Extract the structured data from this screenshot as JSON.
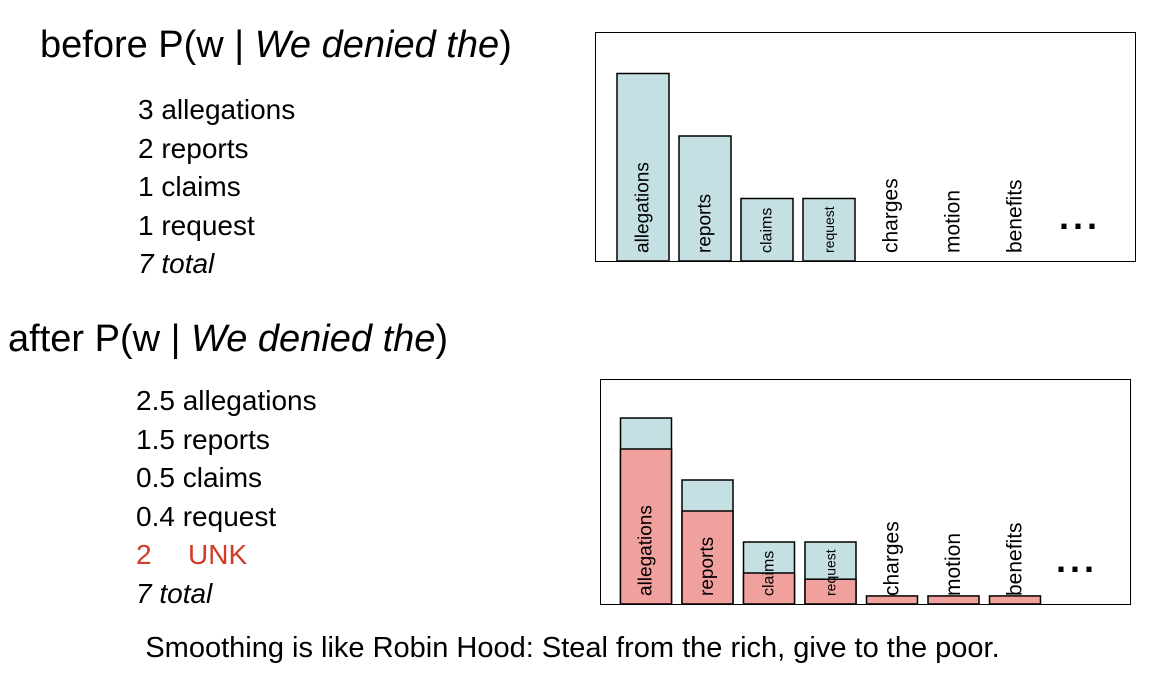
{
  "before": {
    "heading_prefix": "before P(w | ",
    "heading_context": "We denied the",
    "heading_suffix": ")",
    "counts": [
      {
        "count": "3",
        "word": "allegations"
      },
      {
        "count": "2",
        "word": "reports"
      },
      {
        "count": "1",
        "word": "claims"
      },
      {
        "count": "1",
        "word": "request"
      }
    ],
    "total": "7 total"
  },
  "after": {
    "heading_prefix": "after P(w | ",
    "heading_context": "We denied the",
    "heading_suffix": ")",
    "counts": [
      {
        "count": "2.5",
        "word": "allegations"
      },
      {
        "count": "1.5",
        "word": "reports"
      },
      {
        "count": "0.5",
        "word": "claims"
      },
      {
        "count": "0.4",
        "word": "request"
      }
    ],
    "unk": {
      "count": "2",
      "word": "UNK"
    },
    "total": "7 total"
  },
  "caption": "Smoothing is like Robin Hood: Steal from the rich, give to the poor.",
  "colors": {
    "original": "#c5e0e2",
    "smoothed": "#f0a09d",
    "unk_text": "#d23a2a"
  },
  "chart_data": [
    {
      "type": "bar",
      "categories": [
        "allegations",
        "reports",
        "claims",
        "request",
        "charges",
        "motion",
        "benefits"
      ],
      "values": [
        3,
        2,
        1,
        1,
        0,
        0,
        0
      ],
      "ellipsis": "..."
    },
    {
      "type": "bar",
      "categories": [
        "allegations",
        "reports",
        "claims",
        "request",
        "charges",
        "motion",
        "benefits"
      ],
      "series": [
        {
          "values": [
            2.5,
            1.5,
            0.5,
            0.4,
            0.13,
            0.13,
            0.13
          ]
        },
        {
          "values": [
            3,
            2,
            1,
            1,
            0,
            0,
            0
          ]
        }
      ],
      "ellipsis": "..."
    }
  ]
}
